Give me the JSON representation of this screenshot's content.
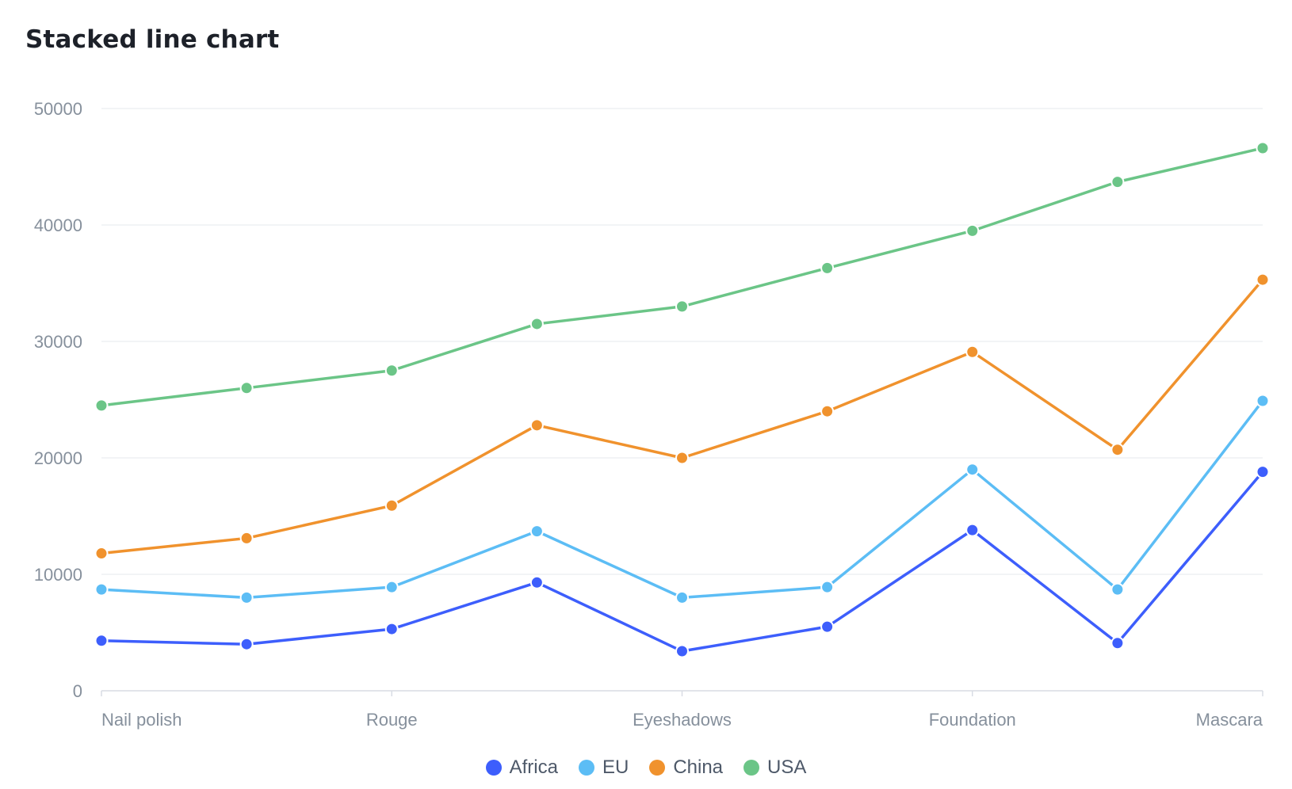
{
  "chart_data": {
    "type": "line",
    "title": "Stacked line chart",
    "categories": [
      "Nail polish",
      "",
      "Rouge",
      "",
      "Eyeshadows",
      "",
      "Foundation",
      "",
      "Mascara"
    ],
    "x_tick_labels": [
      "Nail polish",
      "Rouge",
      "Eyeshadows",
      "Foundation",
      "Mascara"
    ],
    "y_ticks": [
      0,
      10000,
      20000,
      30000,
      40000,
      50000
    ],
    "ylim": [
      0,
      50000
    ],
    "grid": true,
    "legend_position": "bottom",
    "series": [
      {
        "name": "Africa",
        "color": "#3d5efc",
        "values": [
          4300,
          4000,
          5300,
          9300,
          3400,
          5500,
          13800,
          4100,
          18800
        ]
      },
      {
        "name": "EU",
        "color": "#5cbdf5",
        "values": [
          8700,
          8000,
          8900,
          13700,
          8000,
          8900,
          19000,
          8700,
          24900
        ]
      },
      {
        "name": "China",
        "color": "#f0922d",
        "values": [
          11800,
          13100,
          15900,
          22800,
          20000,
          24000,
          29100,
          20700,
          35300
        ]
      },
      {
        "name": "USA",
        "color": "#6bc587",
        "values": [
          24500,
          26000,
          27500,
          31500,
          33000,
          36300,
          39500,
          43700,
          46600
        ]
      }
    ]
  }
}
